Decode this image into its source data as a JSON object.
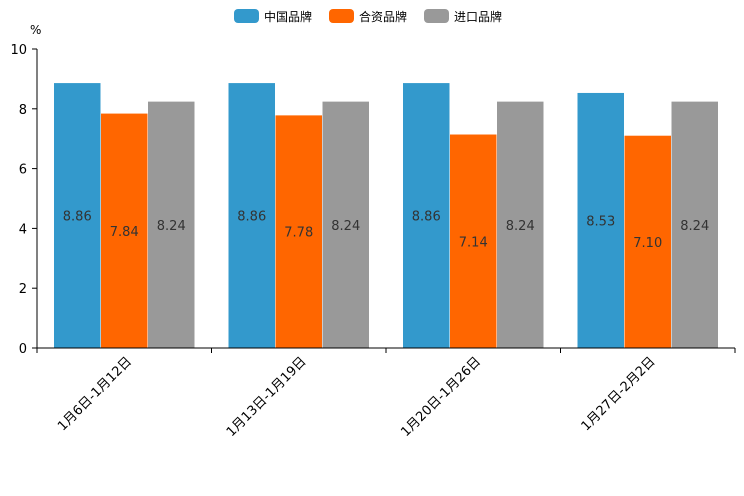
{
  "chart_data": {
    "type": "bar",
    "unit": "%",
    "categories": [
      "1月6日-1月12日",
      "1月13日-1月19日",
      "1月20日-1月26日",
      "1月27日-2月2日"
    ],
    "series": [
      {
        "name": "中国品牌",
        "color": "#3399cc",
        "values": [
          8.86,
          8.86,
          8.86,
          8.53
        ]
      },
      {
        "name": "合资品牌",
        "color": "#ff6600",
        "values": [
          7.84,
          7.78,
          7.14,
          7.1
        ]
      },
      {
        "name": "进口品牌",
        "color": "#999999",
        "values": [
          8.24,
          8.24,
          8.24,
          8.24
        ]
      }
    ],
    "ylim": [
      0,
      10
    ],
    "yticks": [
      0,
      2,
      4,
      6,
      8,
      10
    ],
    "legend_position": "top-center",
    "grid": false
  }
}
